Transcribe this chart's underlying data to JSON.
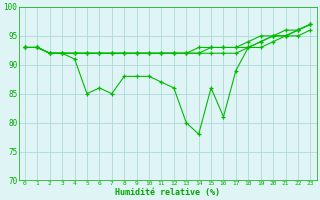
{
  "background_color": "#dff4f4",
  "grid_color": "#b0d8d8",
  "line_color": "#00bb00",
  "xlabel": "Humidité relative (%)",
  "xlabel_color": "#00aa00",
  "tick_color": "#00aa00",
  "ylim": [
    70,
    100
  ],
  "xlim": [
    -0.5,
    23.5
  ],
  "yticks": [
    70,
    75,
    80,
    85,
    90,
    95,
    100
  ],
  "xtick_labels": [
    "0",
    "1",
    "2",
    "3",
    "4",
    "5",
    "6",
    "7",
    "8",
    "9",
    "10",
    "11",
    "12",
    "13",
    "14",
    "15",
    "16",
    "17",
    "18",
    "19",
    "20",
    "21",
    "22",
    "23"
  ],
  "series": [
    [
      93,
      93,
      92,
      92,
      91,
      85,
      86,
      85,
      88,
      88,
      88,
      87,
      86,
      80,
      78,
      86,
      81,
      89,
      93,
      94,
      95,
      95,
      96,
      97
    ],
    [
      93,
      93,
      92,
      92,
      92,
      92,
      92,
      92,
      92,
      92,
      92,
      92,
      92,
      92,
      92,
      92,
      92,
      92,
      93,
      93,
      94,
      95,
      95,
      96
    ],
    [
      93,
      93,
      92,
      92,
      92,
      92,
      92,
      92,
      92,
      92,
      92,
      92,
      92,
      92,
      92,
      93,
      93,
      93,
      93,
      94,
      95,
      96,
      96,
      97
    ],
    [
      93,
      93,
      92,
      92,
      92,
      92,
      92,
      92,
      92,
      92,
      92,
      92,
      92,
      92,
      93,
      93,
      93,
      93,
      94,
      95,
      95,
      95,
      96,
      97
    ]
  ]
}
